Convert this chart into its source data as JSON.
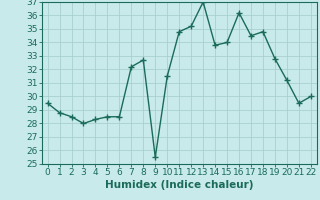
{
  "x": [
    0,
    1,
    2,
    3,
    4,
    5,
    6,
    7,
    8,
    9,
    10,
    11,
    12,
    13,
    14,
    15,
    16,
    17,
    18,
    19,
    20,
    21,
    22
  ],
  "y": [
    29.5,
    28.8,
    28.5,
    28.0,
    28.3,
    28.5,
    28.5,
    32.2,
    32.7,
    25.5,
    31.5,
    34.8,
    35.2,
    37.0,
    33.8,
    34.0,
    36.2,
    34.5,
    34.8,
    32.8,
    31.2,
    29.5,
    30.0
  ],
  "line_color": "#1a6b5a",
  "marker": "+",
  "marker_size": 5,
  "bg_color": "#c8eaea",
  "grid_color": "#aacfcf",
  "xlabel": "Humidex (Indice chaleur)",
  "ylim": [
    25,
    37
  ],
  "xlim": [
    -0.5,
    22.5
  ],
  "yticks": [
    25,
    26,
    27,
    28,
    29,
    30,
    31,
    32,
    33,
    34,
    35,
    36,
    37
  ],
  "xticks": [
    0,
    1,
    2,
    3,
    4,
    5,
    6,
    7,
    8,
    9,
    10,
    11,
    12,
    13,
    14,
    15,
    16,
    17,
    18,
    19,
    20,
    21,
    22
  ],
  "xlabel_fontsize": 7.5,
  "tick_fontsize": 6.5,
  "line_width": 1.0,
  "marker_linewidth": 1.0
}
